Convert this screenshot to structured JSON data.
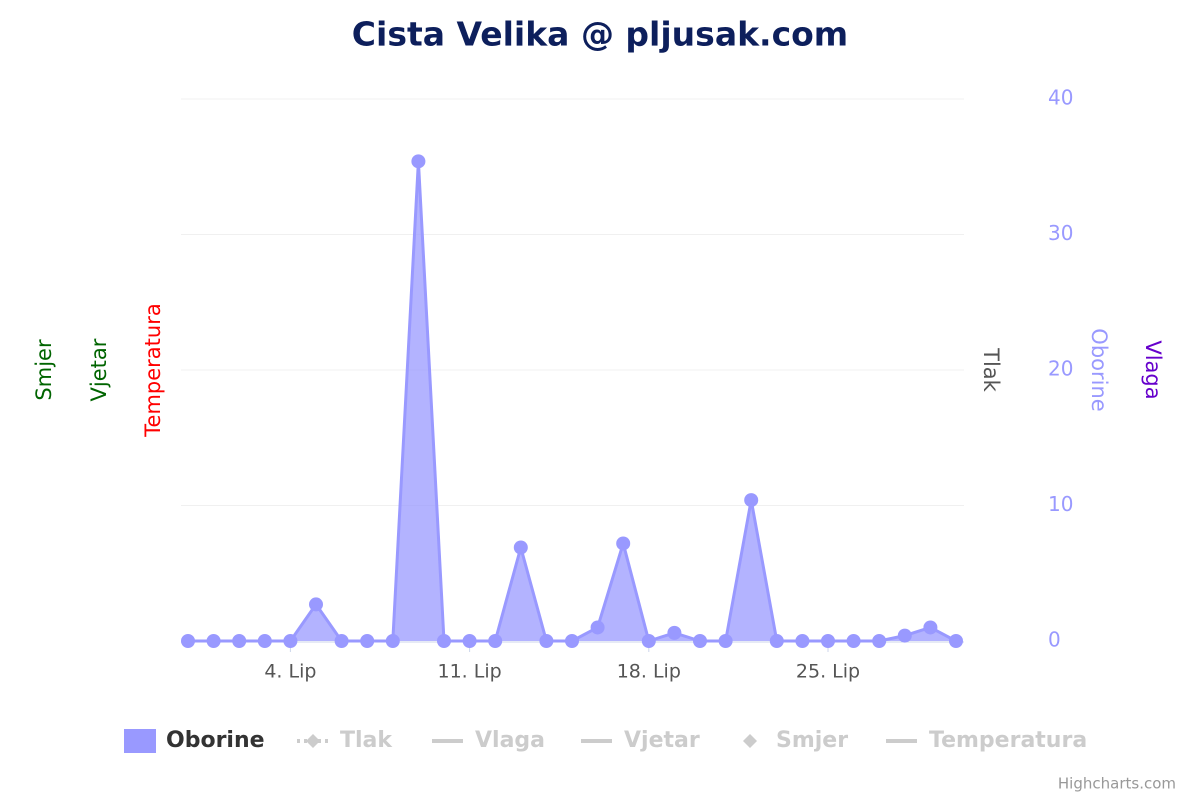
{
  "chart_data": {
    "type": "area",
    "title": "Cista Velika @ pljusak.com",
    "categories": [
      null,
      null,
      null,
      null,
      "4. Lip",
      null,
      null,
      null,
      null,
      null,
      null,
      "11. Lip",
      null,
      null,
      null,
      null,
      null,
      null,
      "18. Lip",
      null,
      null,
      null,
      null,
      null,
      null,
      "25. Lip",
      null,
      null,
      null,
      null,
      null
    ],
    "series": [
      {
        "name": "Oborine",
        "color": "#9999ff",
        "values": [
          0,
          0,
          0,
          0,
          0,
          2.7,
          0,
          0,
          0,
          35.4,
          0,
          0,
          0,
          6.9,
          0,
          0,
          1.0,
          7.2,
          0,
          0.6,
          0,
          0,
          10.4,
          0,
          0,
          0,
          0,
          0,
          0.4,
          1.0,
          0
        ]
      }
    ],
    "hidden_series": [
      {
        "name": "Tlak",
        "symbol": "diamond-line"
      },
      {
        "name": "Vlaga",
        "symbol": "line"
      },
      {
        "name": "Vjetar",
        "symbol": "line"
      },
      {
        "name": "Smjer",
        "symbol": "diamond"
      },
      {
        "name": "Temperatura",
        "symbol": "line"
      }
    ],
    "ylim": [
      0,
      40
    ],
    "yticks": [
      0,
      10,
      20,
      30,
      40
    ],
    "grid": true,
    "axis_titles": [
      {
        "title": "Smjer",
        "color": "#006400",
        "side": "left"
      },
      {
        "title": "Vjetar",
        "color": "#006400",
        "side": "left"
      },
      {
        "title": "Temperatura",
        "color": "#ff0000",
        "side": "left"
      },
      {
        "title": "Tlak",
        "color": "#555555",
        "side": "right"
      },
      {
        "title": "Oborine",
        "color": "#9999ff",
        "side": "right"
      },
      {
        "title": "Vlaga",
        "color": "#6600cc",
        "side": "right"
      }
    ],
    "credits": "Highcharts.com"
  }
}
